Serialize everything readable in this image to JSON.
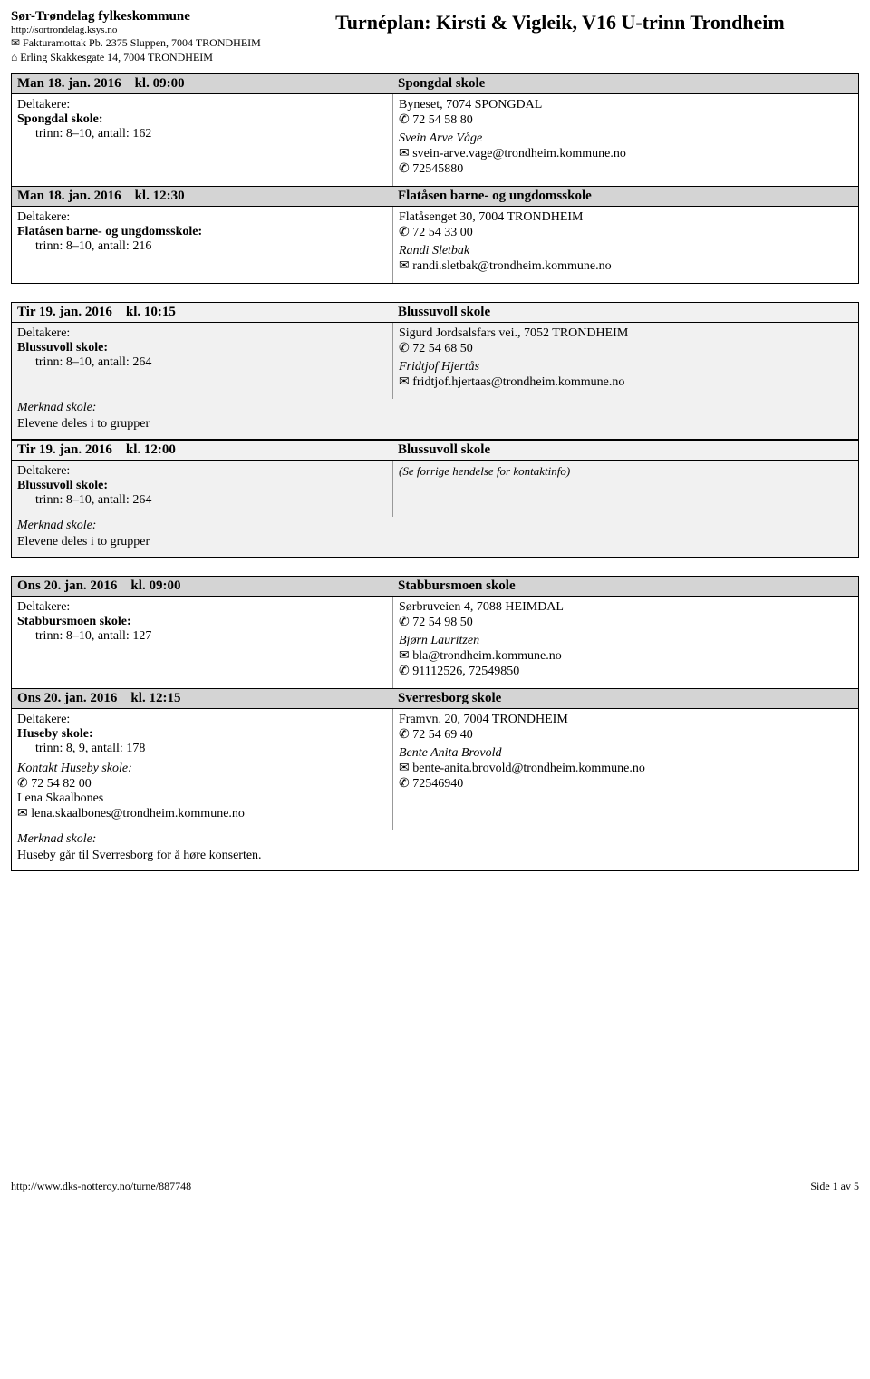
{
  "header": {
    "org_name": "Sør-Trøndelag fylkeskommune",
    "org_url": "http://sortrondelag.ksys.no",
    "mail_line": "✉ Fakturamottak Pb. 2375 Sluppen, 7004 TRONDHEIM",
    "visit_line": "⌂ Erling Skakkesgate 14, 7004 TRONDHEIM",
    "page_title": "Turnéplan: Kirsti & Vigleik, V16 U-trinn Trondheim"
  },
  "labels": {
    "deltakere": "Deltakere:",
    "merknad": "Merknad skole:",
    "kl": "kl."
  },
  "groups": [
    {
      "light": false,
      "events": [
        {
          "date": "Man 18. jan. 2016",
          "time": "09:00",
          "school_name": "Spongdal skole",
          "deltakere": [
            {
              "school": "Spongdal skole:",
              "trinn": "trinn: 8–10, antall: 162"
            }
          ],
          "address": "Byneset, 7074 SPONGDAL",
          "phone": "✆ 72 54 58 80",
          "contact_name": "Svein Arve Våge",
          "contact_email": "✉ svein-arve.vage@trondheim.kommune.no",
          "contact_phone": "✆ 72545880"
        },
        {
          "date": "Man 18. jan. 2016",
          "time": "12:30",
          "school_name": "Flatåsen barne- og ungdomsskole",
          "deltakere": [
            {
              "school": "Flatåsen barne- og ungdomsskole:",
              "trinn": "trinn: 8–10, antall: 216"
            }
          ],
          "address": "Flatåsenget 30, 7004 TRONDHEIM",
          "phone": "✆ 72 54 33 00",
          "contact_name": "Randi Sletbak",
          "contact_email": "✉ randi.sletbak@trondheim.kommune.no"
        }
      ]
    },
    {
      "light": true,
      "events": [
        {
          "date": "Tir 19. jan. 2016",
          "time": "10:15",
          "school_name": "Blussuvoll skole",
          "deltakere": [
            {
              "school": "Blussuvoll skole:",
              "trinn": "trinn: 8–10, antall: 264"
            }
          ],
          "address": "Sigurd Jordsalsfars vei., 7052 TRONDHEIM",
          "phone": "✆ 72 54 68 50",
          "contact_name": "Fridtjof Hjertås",
          "contact_email": "✉ fridtjof.hjertaas@trondheim.kommune.no",
          "merknad_text": "Elevene deles i to grupper"
        },
        {
          "date": "Tir 19. jan. 2016",
          "time": "12:00",
          "school_name": "Blussuvoll skole",
          "deltakere": [
            {
              "school": "Blussuvoll skole:",
              "trinn": "trinn: 8–10, antall: 264"
            }
          ],
          "see_prev": "(Se forrige hendelse for kontaktinfo)",
          "merknad_text": "Elevene deles i to grupper"
        }
      ]
    },
    {
      "light": false,
      "events": [
        {
          "date": "Ons 20. jan. 2016",
          "time": "09:00",
          "school_name": "Stabbursmoen skole",
          "deltakere": [
            {
              "school": "Stabbursmoen skole:",
              "trinn": "trinn: 8–10, antall: 127"
            }
          ],
          "address": "Sørbruveien 4, 7088 HEIMDAL",
          "phone": "✆ 72 54 98 50",
          "contact_name": "Bjørn Lauritzen",
          "contact_email": "✉ bla@trondheim.kommune.no",
          "contact_phone": "✆ 91112526, 72549850"
        },
        {
          "date": "Ons 20. jan. 2016",
          "time": "12:15",
          "school_name": "Sverresborg skole",
          "deltakere": [
            {
              "school": "Huseby skole:",
              "trinn": "trinn: 8, 9, antall: 178"
            }
          ],
          "extra_kontakt": {
            "header": "Kontakt Huseby skole:",
            "phone": "✆ 72 54 82 00",
            "name": "Lena Skaalbones",
            "email": "✉ lena.skaalbones@trondheim.kommune.no"
          },
          "address": "Framvn. 20, 7004 TRONDHEIM",
          "phone": "✆ 72 54 69 40",
          "contact_name": "Bente Anita Brovold",
          "contact_email": "✉ bente-anita.brovold@trondheim.kommune.no",
          "contact_phone": "✆ 72546940",
          "merknad_text": "Huseby går til Sverresborg for å høre konserten."
        }
      ]
    }
  ],
  "footer": {
    "url": "http://www.dks-notteroy.no/turne/887748",
    "page": "Side 1 av 5"
  }
}
